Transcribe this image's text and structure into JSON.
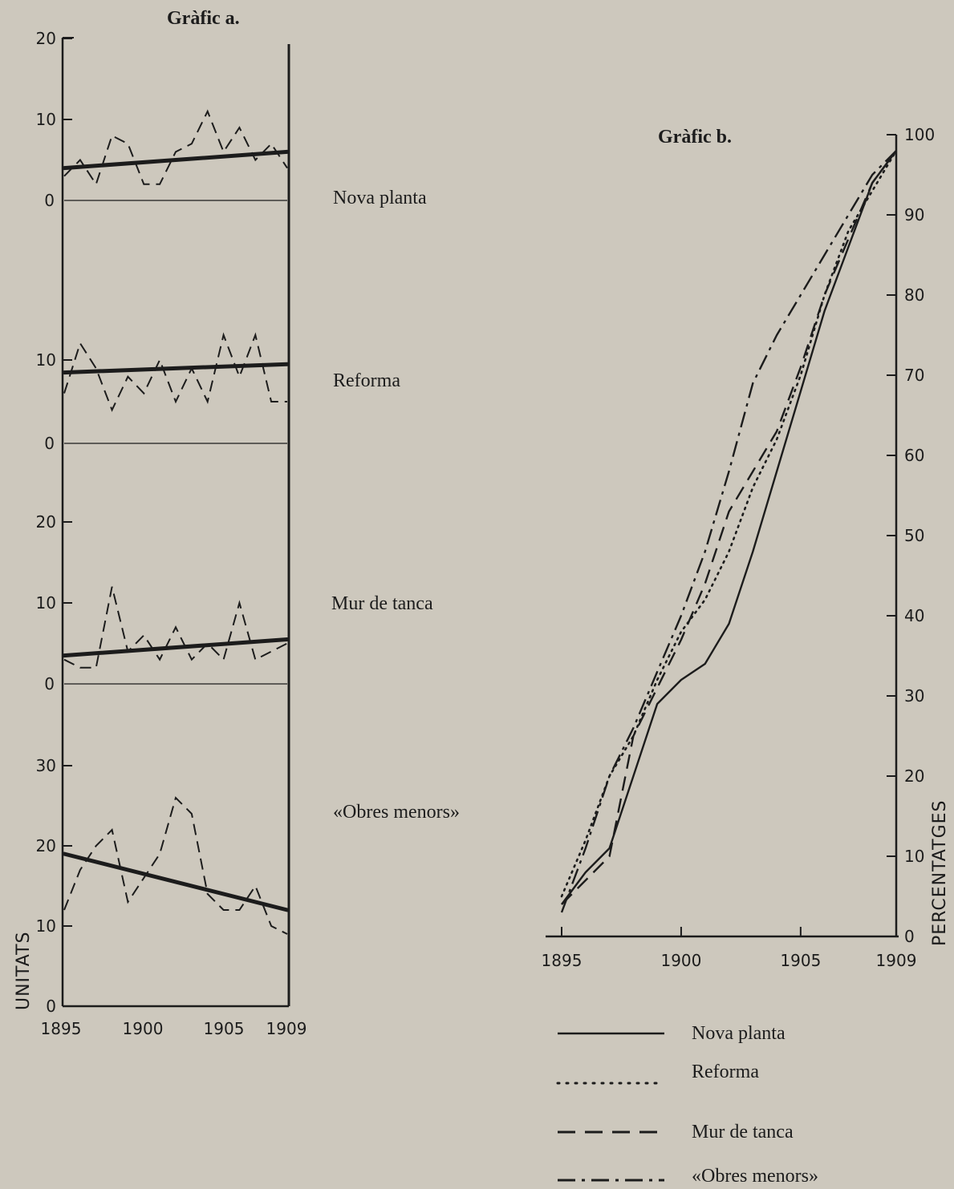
{
  "chart_data": [
    {
      "id": "a",
      "type": "line",
      "title": "Gràfic a.",
      "ylabel": "UNITATS",
      "x_ticks": [
        "1895",
        "1900",
        "1905",
        "1909"
      ],
      "panels": [
        {
          "label": "Nova planta",
          "y_ticks": [
            "0",
            "10",
            "20"
          ],
          "ylim": [
            0,
            20
          ],
          "x": [
            1895,
            1896,
            1897,
            1898,
            1899,
            1900,
            1901,
            1902,
            1903,
            1904,
            1905,
            1906,
            1907,
            1908,
            1909
          ],
          "values": [
            3,
            5,
            2,
            8,
            7,
            2,
            2,
            6,
            7,
            11,
            6,
            9,
            5,
            7,
            4
          ],
          "trend": [
            4,
            6
          ]
        },
        {
          "label": "Reforma",
          "y_ticks": [
            "0",
            "10"
          ],
          "ylim": [
            0,
            20
          ],
          "x": [
            1895,
            1896,
            1897,
            1898,
            1899,
            1900,
            1901,
            1902,
            1903,
            1904,
            1905,
            1906,
            1907,
            1908,
            1909
          ],
          "values": [
            6,
            12,
            9,
            4,
            8,
            6,
            10,
            5,
            9,
            5,
            13,
            8,
            13,
            5,
            5
          ],
          "trend": [
            8.5,
            9.5
          ]
        },
        {
          "label": "Mur de tanca",
          "y_ticks": [
            "0",
            "10",
            "20"
          ],
          "ylim": [
            0,
            20
          ],
          "x": [
            1895,
            1896,
            1897,
            1898,
            1899,
            1900,
            1901,
            1902,
            1903,
            1904,
            1905,
            1906,
            1907,
            1908,
            1909
          ],
          "values": [
            3,
            2,
            2,
            12,
            4,
            6,
            3,
            7,
            3,
            5,
            3,
            10,
            3,
            4,
            5
          ],
          "trend": [
            3.5,
            5.5
          ]
        },
        {
          "label": "«Obres menors»",
          "y_ticks": [
            "0",
            "10",
            "20",
            "30"
          ],
          "ylim": [
            0,
            30
          ],
          "x": [
            1895,
            1896,
            1897,
            1898,
            1899,
            1900,
            1901,
            1902,
            1903,
            1904,
            1905,
            1906,
            1907,
            1908,
            1909
          ],
          "values": [
            12,
            17,
            20,
            22,
            13,
            16,
            19,
            26,
            24,
            14,
            12,
            12,
            15,
            10,
            9
          ],
          "trend": [
            19,
            12
          ]
        }
      ]
    },
    {
      "id": "b",
      "type": "line",
      "title": "Gràfic b.",
      "ylabel": "PERCENTATGES",
      "xlim": [
        1895,
        1909
      ],
      "ylim": [
        0,
        100
      ],
      "x_ticks": [
        "1895",
        "1900",
        "1905",
        "1909"
      ],
      "y_ticks": [
        "0",
        "10",
        "20",
        "30",
        "40",
        "50",
        "60",
        "70",
        "80",
        "90",
        "100"
      ],
      "series": [
        {
          "name": "Nova planta",
          "style": "solid",
          "x": [
            1895,
            1896,
            1897,
            1898,
            1899,
            1900,
            1901,
            1902,
            1903,
            1904,
            1905,
            1906,
            1907,
            1908,
            1909
          ],
          "values": [
            4,
            8,
            11,
            20,
            29,
            32,
            34,
            39,
            48,
            58,
            68,
            78,
            86,
            94,
            98
          ]
        },
        {
          "name": "Reforma",
          "style": "dotted",
          "x": [
            1895,
            1896,
            1897,
            1898,
            1899,
            1900,
            1901,
            1902,
            1903,
            1904,
            1905,
            1906,
            1907,
            1908,
            1909
          ],
          "values": [
            5,
            12,
            20,
            25,
            32,
            38,
            42,
            48,
            56,
            62,
            70,
            80,
            88,
            93,
            98
          ]
        },
        {
          "name": "Mur de tanca",
          "style": "dashed",
          "x": [
            1895,
            1896,
            1897,
            1898,
            1899,
            1900,
            1901,
            1902,
            1903,
            1904,
            1905,
            1906,
            1907,
            1908,
            1909
          ],
          "values": [
            4,
            7,
            10,
            25,
            31,
            37,
            44,
            53,
            58,
            63,
            71,
            80,
            87,
            94,
            98
          ]
        },
        {
          "name": "«Obres menors»",
          "style": "dashdot",
          "x": [
            1895,
            1896,
            1897,
            1898,
            1899,
            1900,
            1901,
            1902,
            1903,
            1904,
            1905,
            1906,
            1907,
            1908,
            1909
          ],
          "values": [
            3,
            11,
            20,
            26,
            33,
            40,
            48,
            58,
            69,
            75,
            80,
            85,
            90,
            95,
            98
          ]
        }
      ]
    }
  ]
}
